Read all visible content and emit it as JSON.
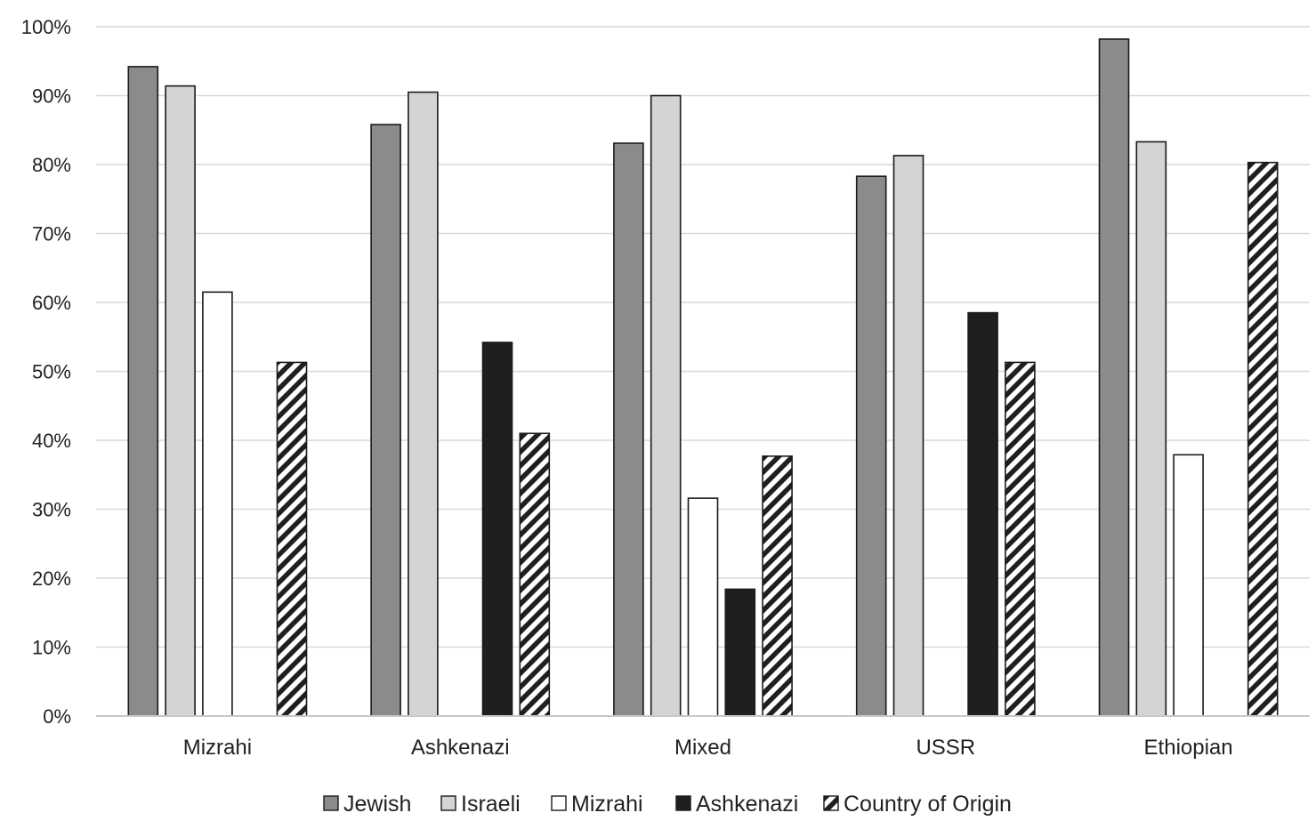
{
  "chart_data": {
    "type": "bar",
    "title": "",
    "xlabel": "",
    "ylabel": "",
    "ylim": [
      0,
      100
    ],
    "yticks": [
      "0%",
      "10%",
      "20%",
      "30%",
      "40%",
      "50%",
      "60%",
      "70%",
      "80%",
      "90%",
      "100%"
    ],
    "grid": true,
    "legend_position": "bottom",
    "categories": [
      "Mizrahi",
      "Ashkenazi",
      "Mixed",
      "USSR",
      "Ethiopian"
    ],
    "series": [
      {
        "name": "Jewish",
        "color": "#8a8b8d",
        "pattern": "solid",
        "values": [
          94.2,
          85.8,
          83.1,
          78.3,
          98.2
        ]
      },
      {
        "name": "Israeli",
        "color": "#d3d4d6",
        "pattern": "solid",
        "values": [
          91.4,
          90.5,
          90.0,
          81.3,
          83.3
        ]
      },
      {
        "name": "Mizrahi",
        "color": "#ffffff",
        "pattern": "solid",
        "values": [
          61.5,
          null,
          31.6,
          null,
          37.9
        ]
      },
      {
        "name": "Ashkenazi",
        "color": "#1f1f1f",
        "pattern": "solid",
        "values": [
          null,
          54.2,
          18.4,
          58.5,
          null
        ]
      },
      {
        "name": "Country of Origin",
        "color": "#1f1f1f",
        "pattern": "diagonal-stripes",
        "values": [
          51.3,
          41.0,
          37.7,
          51.3,
          80.3
        ]
      }
    ]
  }
}
